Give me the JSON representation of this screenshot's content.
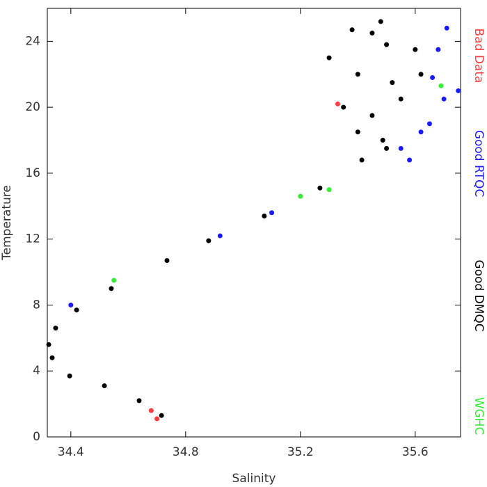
{
  "chart_data": {
    "type": "scatter",
    "x_label": "Salinity",
    "y_label": "Temperature",
    "xlim": [
      34.318,
      35.758
    ],
    "ylim": [
      0,
      26
    ],
    "xticks": [
      34.4,
      34.8,
      35.2,
      35.6
    ],
    "yticks": [
      0,
      4,
      8,
      12,
      16,
      20,
      24
    ],
    "series": [
      {
        "name": "Bad Data",
        "color": "#ff3b3b",
        "x": [
          35.33,
          34.7,
          34.68
        ],
        "values": [
          20.2,
          1.1,
          1.6
        ]
      },
      {
        "name": "Good RTQC",
        "color": "#1a1aff",
        "x": [
          35.55,
          35.62,
          35.7,
          35.75,
          35.68,
          35.71,
          35.65,
          35.58,
          35.66,
          34.92,
          35.1,
          34.4
        ],
        "values": [
          17.5,
          18.5,
          20.5,
          21.0,
          23.5,
          24.8,
          19.0,
          16.8,
          21.8,
          12.2,
          13.6,
          8.0
        ]
      },
      {
        "name": "Good DMQC",
        "color": "#000000",
        "x": [
          34.716,
          34.638,
          34.517,
          34.396,
          34.335,
          34.323,
          34.347,
          34.42,
          34.541,
          34.735,
          34.88,
          35.074,
          35.268,
          35.414,
          35.487,
          35.48,
          35.45,
          35.5,
          35.3,
          35.4,
          35.52,
          35.35,
          35.45,
          35.55,
          35.6,
          35.4,
          35.5,
          35.38,
          35.62
        ],
        "values": [
          1.3,
          2.2,
          3.1,
          3.7,
          4.8,
          5.6,
          6.6,
          7.7,
          9.0,
          10.7,
          11.9,
          13.4,
          15.1,
          16.8,
          18.0,
          25.2,
          24.5,
          23.8,
          23.0,
          22.0,
          21.5,
          20.0,
          19.5,
          20.5,
          23.5,
          18.5,
          17.5,
          24.7,
          22.0
        ]
      },
      {
        "name": "WGHC",
        "color": "#33ee33",
        "x": [
          35.69,
          35.3,
          35.2,
          34.55
        ],
        "values": [
          21.3,
          15.0,
          14.6,
          9.5
        ]
      }
    ]
  }
}
